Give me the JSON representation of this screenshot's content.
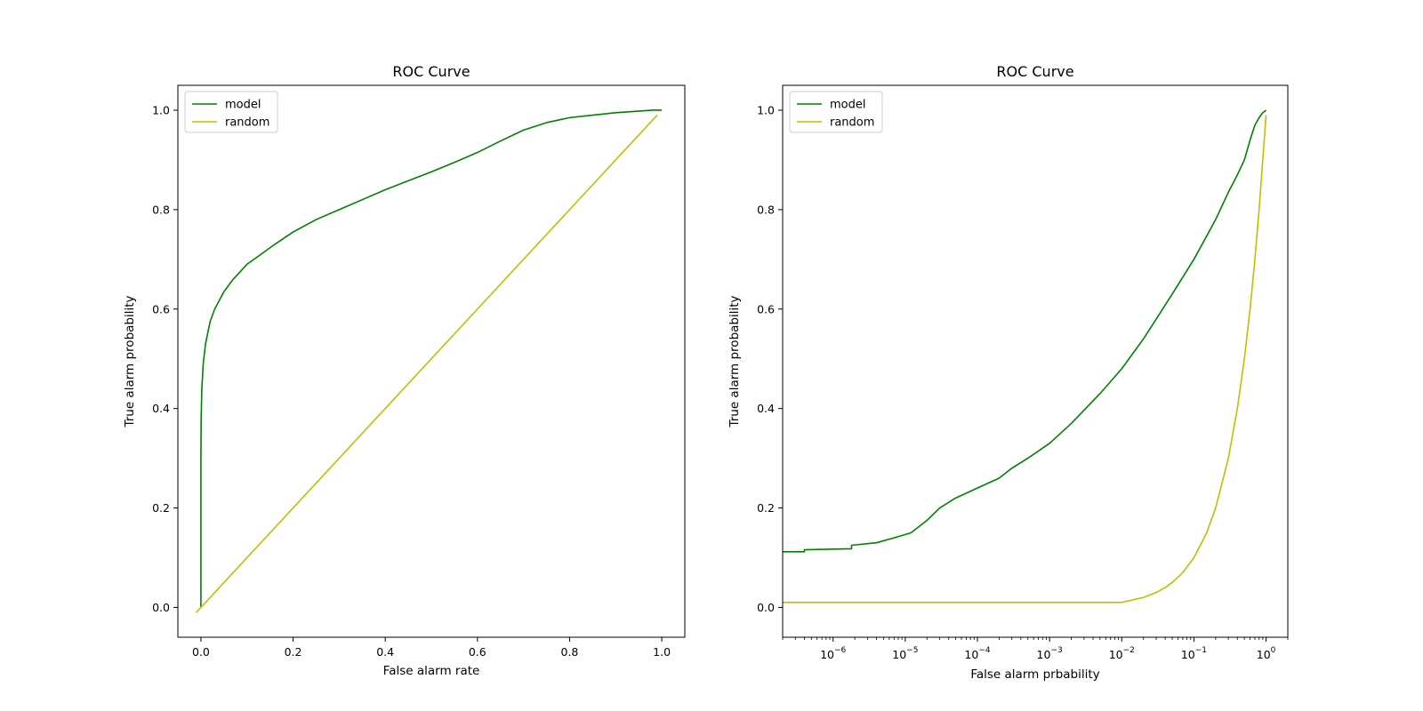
{
  "chart_data": [
    {
      "type": "line",
      "title": "ROC Curve",
      "xlabel": "False alarm rate",
      "ylabel": "True alarm probability",
      "xscale": "linear",
      "xlim": [
        -0.05,
        1.05
      ],
      "ylim": [
        -0.06,
        1.05
      ],
      "xticks": [
        0.0,
        0.2,
        0.4,
        0.6,
        0.8,
        1.0
      ],
      "xtick_labels": [
        "0.0",
        "0.2",
        "0.4",
        "0.6",
        "0.8",
        "1.0"
      ],
      "yticks": [
        0.0,
        0.2,
        0.4,
        0.6,
        0.8,
        1.0
      ],
      "ytick_labels": [
        "0.0",
        "0.2",
        "0.4",
        "0.6",
        "0.8",
        "1.0"
      ],
      "legend": "upper-left",
      "grid": false,
      "series": [
        {
          "name": "model",
          "color": "#008000",
          "x": [
            0,
            0,
            0.0005,
            0.002,
            0.005,
            0.01,
            0.02,
            0.03,
            0.05,
            0.07,
            0.1,
            0.13,
            0.16,
            0.2,
            0.25,
            0.3,
            0.35,
            0.4,
            0.45,
            0.5,
            0.55,
            0.6,
            0.65,
            0.7,
            0.75,
            0.8,
            0.85,
            0.9,
            0.95,
            0.98,
            1.0
          ],
          "y": [
            0,
            0.3,
            0.38,
            0.44,
            0.49,
            0.53,
            0.575,
            0.6,
            0.635,
            0.66,
            0.69,
            0.71,
            0.73,
            0.755,
            0.78,
            0.8,
            0.82,
            0.84,
            0.858,
            0.876,
            0.895,
            0.915,
            0.938,
            0.96,
            0.975,
            0.985,
            0.99,
            0.995,
            0.998,
            1.0,
            1.0
          ]
        },
        {
          "name": "random",
          "color": "#bfbf00",
          "x": [
            -0.01,
            0.99
          ],
          "y": [
            -0.01,
            0.99
          ]
        }
      ]
    },
    {
      "type": "line",
      "title": "ROC Curve",
      "xlabel": "False alarm prbability",
      "ylabel": "True alarm probability",
      "xscale": "log",
      "xlim": [
        2e-07,
        2.0
      ],
      "ylim": [
        -0.06,
        1.05
      ],
      "xticks": [
        1e-06,
        1e-05,
        0.0001,
        0.001,
        0.01,
        0.1,
        1
      ],
      "xtick_labels": [
        {
          "base": "10",
          "exp": "−6"
        },
        {
          "base": "10",
          "exp": "−5"
        },
        {
          "base": "10",
          "exp": "−4"
        },
        {
          "base": "10",
          "exp": "−3"
        },
        {
          "base": "10",
          "exp": "−2"
        },
        {
          "base": "10",
          "exp": "−1"
        },
        {
          "base": "10",
          "exp": "0"
        }
      ],
      "yticks": [
        0.0,
        0.2,
        0.4,
        0.6,
        0.8,
        1.0
      ],
      "ytick_labels": [
        "0.0",
        "0.2",
        "0.4",
        "0.6",
        "0.8",
        "1.0"
      ],
      "legend": "upper-left",
      "grid": false,
      "series": [
        {
          "name": "model",
          "color": "#008000",
          "x": [
            2e-07,
            4e-07,
            4e-07,
            1.8e-06,
            1.8e-06,
            4e-06,
            7e-06,
            1.2e-05,
            2e-05,
            3e-05,
            5e-05,
            0.0001,
            0.0002,
            0.0003,
            0.0005,
            0.001,
            0.002,
            0.005,
            0.01,
            0.02,
            0.05,
            0.1,
            0.2,
            0.3,
            0.4,
            0.5,
            0.6,
            0.7,
            0.8,
            0.9,
            1.0
          ],
          "y": [
            0.112,
            0.112,
            0.116,
            0.118,
            0.125,
            0.13,
            0.14,
            0.15,
            0.175,
            0.2,
            0.22,
            0.24,
            0.26,
            0.28,
            0.3,
            0.33,
            0.37,
            0.43,
            0.48,
            0.54,
            0.63,
            0.7,
            0.78,
            0.835,
            0.87,
            0.9,
            0.94,
            0.97,
            0.985,
            0.995,
            1.0
          ]
        },
        {
          "name": "random",
          "color": "#bfbf00",
          "x": [
            2e-07,
            0.01,
            0.02,
            0.03,
            0.04,
            0.05,
            0.07,
            0.1,
            0.15,
            0.2,
            0.3,
            0.4,
            0.5,
            0.6,
            0.7,
            0.8,
            0.9,
            1.0
          ],
          "y": [
            0.01,
            0.01,
            0.02,
            0.03,
            0.04,
            0.05,
            0.07,
            0.1,
            0.15,
            0.2,
            0.3,
            0.4,
            0.5,
            0.6,
            0.7,
            0.8,
            0.9,
            0.99
          ]
        }
      ]
    }
  ]
}
